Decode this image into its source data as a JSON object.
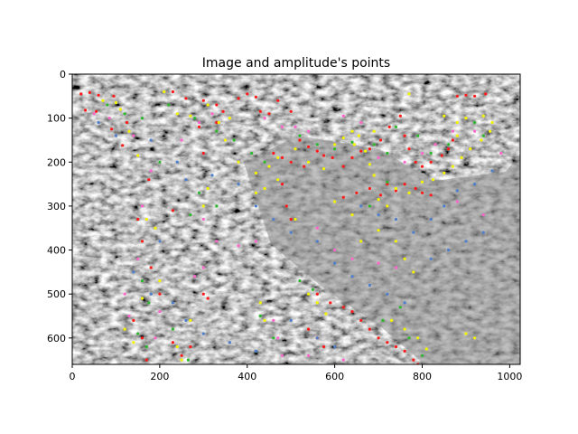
{
  "chart_data": {
    "type": "scatter",
    "title": "Image and amplitude's points",
    "xlabel": "",
    "ylabel": "",
    "xlim": [
      0,
      1024
    ],
    "ylim": [
      660,
      0
    ],
    "x_ticks": [
      0,
      200,
      400,
      600,
      800,
      1000
    ],
    "y_ticks": [
      0,
      100,
      200,
      300,
      400,
      500,
      600
    ],
    "grid": false,
    "legend": "none",
    "background_image": "grayscale texture micrograph",
    "colors": {
      "red": "#ff1a1a",
      "yellow": "#f5f500",
      "green": "#2eb82e",
      "pink": "#ff66cc",
      "blue": "#4d7fcc",
      "image_mid_gray": "#8a8a8a"
    },
    "series": [
      {
        "color_key": "red",
        "points": [
          [
            20,
            45
          ],
          [
            40,
            42
          ],
          [
            60,
            48
          ],
          [
            95,
            50
          ],
          [
            30,
            82
          ],
          [
            55,
            85
          ],
          [
            90,
            125
          ],
          [
            125,
            110
          ],
          [
            115,
            162
          ],
          [
            230,
            40
          ],
          [
            260,
            55
          ],
          [
            300,
            60
          ],
          [
            330,
            70
          ],
          [
            345,
            85
          ],
          [
            380,
            55
          ],
          [
            400,
            45
          ],
          [
            420,
            52
          ],
          [
            430,
            85
          ],
          [
            450,
            90
          ],
          [
            470,
            60
          ],
          [
            500,
            85
          ],
          [
            520,
            150
          ],
          [
            540,
            165
          ],
          [
            560,
            175
          ],
          [
            575,
            185
          ],
          [
            595,
            190
          ],
          [
            620,
            210
          ],
          [
            640,
            190
          ],
          [
            660,
            175
          ],
          [
            680,
            170
          ],
          [
            705,
            150
          ],
          [
            725,
            120
          ],
          [
            750,
            95
          ],
          [
            760,
            140
          ],
          [
            770,
            170
          ],
          [
            785,
            200
          ],
          [
            800,
            210
          ],
          [
            820,
            200
          ],
          [
            845,
            185
          ],
          [
            860,
            170
          ],
          [
            870,
            150
          ],
          [
            880,
            50
          ],
          [
            900,
            48
          ],
          [
            920,
            50
          ],
          [
            945,
            45
          ],
          [
            620,
            280
          ],
          [
            650,
            270
          ],
          [
            680,
            260
          ],
          [
            705,
            275
          ],
          [
            720,
            250
          ],
          [
            740,
            265
          ],
          [
            760,
            250
          ],
          [
            785,
            260
          ],
          [
            800,
            270
          ],
          [
            820,
            275
          ],
          [
            530,
            210
          ],
          [
            500,
            200
          ],
          [
            480,
            190
          ],
          [
            460,
            180
          ],
          [
            300,
            180
          ],
          [
            230,
            310
          ],
          [
            175,
            240
          ],
          [
            150,
            330
          ],
          [
            160,
            380
          ],
          [
            560,
            500
          ],
          [
            590,
            520
          ],
          [
            620,
            530
          ],
          [
            640,
            540
          ],
          [
            660,
            560
          ],
          [
            680,
            580
          ],
          [
            700,
            600
          ],
          [
            720,
            610
          ],
          [
            740,
            620
          ],
          [
            760,
            630
          ],
          [
            780,
            650
          ],
          [
            790,
            660
          ],
          [
            540,
            580
          ],
          [
            560,
            600
          ],
          [
            575,
            620
          ],
          [
            140,
            560
          ],
          [
            160,
            600
          ],
          [
            170,
            650
          ],
          [
            230,
            610
          ],
          [
            250,
            640
          ],
          [
            270,
            620
          ],
          [
            300,
            500
          ],
          [
            310,
            510
          ],
          [
            480,
            250
          ],
          [
            490,
            300
          ],
          [
            500,
            330
          ],
          [
            330,
            110
          ],
          [
            290,
            120
          ],
          [
            200,
            500
          ],
          [
            180,
            440
          ]
        ]
      },
      {
        "color_key": "yellow",
        "points": [
          [
            70,
            60
          ],
          [
            100,
            65
          ],
          [
            110,
            80
          ],
          [
            130,
            130
          ],
          [
            150,
            185
          ],
          [
            210,
            40
          ],
          [
            240,
            90
          ],
          [
            270,
            95
          ],
          [
            310,
            70
          ],
          [
            335,
            110
          ],
          [
            350,
            150
          ],
          [
            380,
            200
          ],
          [
            420,
            225
          ],
          [
            450,
            210
          ],
          [
            470,
            190
          ],
          [
            510,
            170
          ],
          [
            540,
            200
          ],
          [
            575,
            215
          ],
          [
            600,
            160
          ],
          [
            620,
            145
          ],
          [
            640,
            130
          ],
          [
            655,
            140
          ],
          [
            670,
            175
          ],
          [
            680,
            205
          ],
          [
            690,
            230
          ],
          [
            700,
            285
          ],
          [
            720,
            300
          ],
          [
            740,
            260
          ],
          [
            770,
            270
          ],
          [
            800,
            245
          ],
          [
            825,
            240
          ],
          [
            850,
            225
          ],
          [
            870,
            210
          ],
          [
            890,
            190
          ],
          [
            910,
            170
          ],
          [
            935,
            150
          ],
          [
            955,
            130
          ],
          [
            960,
            110
          ],
          [
            940,
            95
          ],
          [
            900,
            100
          ],
          [
            880,
            110
          ],
          [
            850,
            95
          ],
          [
            770,
            45
          ],
          [
            690,
            130
          ],
          [
            645,
            160
          ],
          [
            360,
            100
          ],
          [
            310,
            260
          ],
          [
            300,
            300
          ],
          [
            420,
            270
          ],
          [
            440,
            260
          ],
          [
            470,
            240
          ],
          [
            510,
            330
          ],
          [
            600,
            290
          ],
          [
            640,
            320
          ],
          [
            660,
            380
          ],
          [
            700,
            355
          ],
          [
            740,
            380
          ],
          [
            760,
            420
          ],
          [
            780,
            450
          ],
          [
            730,
            560
          ],
          [
            760,
            580
          ],
          [
            790,
            600
          ],
          [
            810,
            625
          ],
          [
            900,
            590
          ],
          [
            920,
            600
          ],
          [
            540,
            500
          ],
          [
            560,
            520
          ],
          [
            580,
            545
          ],
          [
            430,
            520
          ],
          [
            440,
            560
          ],
          [
            170,
            330
          ],
          [
            190,
            350
          ],
          [
            200,
            470
          ],
          [
            160,
            510
          ],
          [
            120,
            580
          ],
          [
            140,
            610
          ],
          [
            270,
            560
          ],
          [
            240,
            620
          ],
          [
            250,
            650
          ],
          [
            880,
            140
          ]
        ]
      },
      {
        "color_key": "green",
        "points": [
          [
            80,
            70
          ],
          [
            120,
            90
          ],
          [
            160,
            100
          ],
          [
            200,
            200
          ],
          [
            220,
            70
          ],
          [
            280,
            100
          ],
          [
            330,
            130
          ],
          [
            370,
            150
          ],
          [
            410,
            180
          ],
          [
            440,
            200
          ],
          [
            520,
            140
          ],
          [
            560,
            160
          ],
          [
            600,
            170
          ],
          [
            640,
            155
          ],
          [
            690,
            160
          ],
          [
            720,
            180
          ],
          [
            740,
            120
          ],
          [
            790,
            140
          ],
          [
            820,
            180
          ],
          [
            860,
            160
          ],
          [
            920,
            110
          ],
          [
            940,
            140
          ],
          [
            750,
            530
          ],
          [
            710,
            560
          ],
          [
            770,
            600
          ],
          [
            800,
            640
          ],
          [
            430,
            550
          ],
          [
            460,
            600
          ],
          [
            520,
            470
          ],
          [
            550,
            490
          ],
          [
            290,
            270
          ],
          [
            330,
            300
          ],
          [
            270,
            320
          ],
          [
            160,
            470
          ],
          [
            175,
            520
          ],
          [
            150,
            590
          ],
          [
            170,
            620
          ],
          [
            230,
            580
          ],
          [
            265,
            650
          ],
          [
            720,
            245
          ],
          [
            680,
            300
          ]
        ]
      },
      {
        "color_key": "pink",
        "points": [
          [
            50,
            90
          ],
          [
            85,
            100
          ],
          [
            140,
            140
          ],
          [
            180,
            220
          ],
          [
            250,
            150
          ],
          [
            290,
            110
          ],
          [
            320,
            90
          ],
          [
            440,
            100
          ],
          [
            480,
            120
          ],
          [
            510,
            120
          ],
          [
            540,
            130
          ],
          [
            620,
            95
          ],
          [
            660,
            110
          ],
          [
            700,
            190
          ],
          [
            760,
            200
          ],
          [
            800,
            180
          ],
          [
            830,
            160
          ],
          [
            870,
            130
          ],
          [
            920,
            130
          ],
          [
            560,
            350
          ],
          [
            600,
            400
          ],
          [
            640,
            420
          ],
          [
            700,
            430
          ],
          [
            740,
            440
          ],
          [
            460,
            560
          ],
          [
            470,
            600
          ],
          [
            480,
            640
          ],
          [
            420,
            380
          ],
          [
            380,
            390
          ],
          [
            300,
            330
          ],
          [
            330,
            380
          ],
          [
            160,
            300
          ],
          [
            150,
            420
          ],
          [
            200,
            540
          ],
          [
            120,
            500
          ],
          [
            130,
            550
          ],
          [
            190,
            600
          ],
          [
            280,
            460
          ],
          [
            300,
            440
          ],
          [
            540,
            640
          ],
          [
            620,
            650
          ],
          [
            880,
            290
          ],
          [
            940,
            320
          ],
          [
            980,
            180
          ]
        ]
      },
      {
        "color_key": "blue",
        "points": [
          [
            60,
            110
          ],
          [
            100,
            140
          ],
          [
            180,
            150
          ],
          [
            240,
            200
          ],
          [
            260,
            240
          ],
          [
            320,
            230
          ],
          [
            380,
            250
          ],
          [
            420,
            300
          ],
          [
            460,
            330
          ],
          [
            500,
            360
          ],
          [
            560,
            380
          ],
          [
            600,
            430
          ],
          [
            640,
            460
          ],
          [
            680,
            480
          ],
          [
            720,
            500
          ],
          [
            760,
            520
          ],
          [
            820,
            420
          ],
          [
            860,
            400
          ],
          [
            900,
            380
          ],
          [
            940,
            360
          ],
          [
            200,
            380
          ],
          [
            140,
            450
          ],
          [
            180,
            500
          ],
          [
            230,
            520
          ],
          [
            260,
            560
          ],
          [
            300,
            590
          ],
          [
            360,
            610
          ],
          [
            420,
            630
          ],
          [
            500,
            560
          ],
          [
            560,
            600
          ],
          [
            600,
            620
          ],
          [
            960,
            220
          ],
          [
            920,
            250
          ],
          [
            880,
            265
          ],
          [
            850,
            300
          ],
          [
            820,
            330
          ],
          [
            780,
            360
          ],
          [
            740,
            330
          ],
          [
            700,
            320
          ],
          [
            660,
            300
          ]
        ]
      }
    ]
  }
}
